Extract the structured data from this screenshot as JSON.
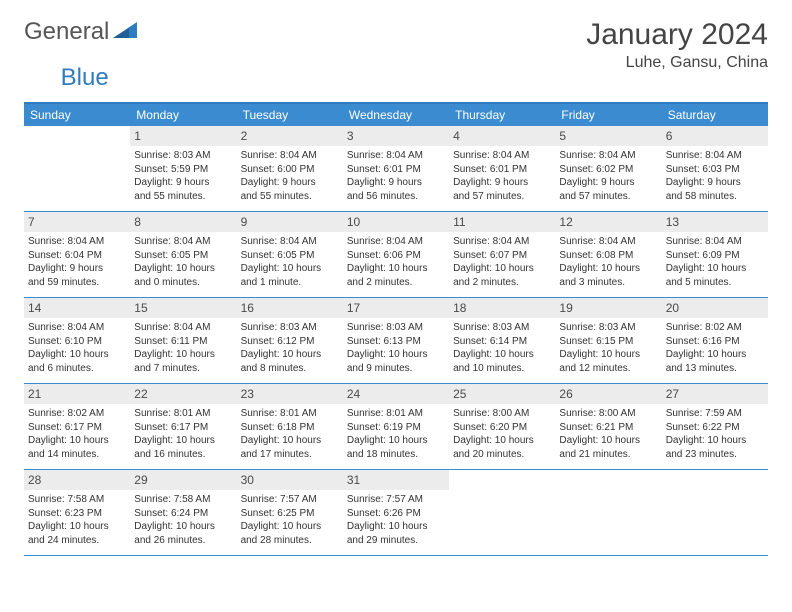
{
  "brand": {
    "part1": "General",
    "part2": "Blue"
  },
  "title": "January 2024",
  "location": "Luhe, Gansu, China",
  "colors": {
    "header_bar": "#3a8bd0",
    "accent_rule": "#2f7bbf",
    "daynum_bg": "#ececec",
    "text": "#333333",
    "logo_gray": "#555555",
    "logo_blue": "#2f7bbf",
    "page_bg": "#ffffff"
  },
  "weekdays": [
    "Sunday",
    "Monday",
    "Tuesday",
    "Wednesday",
    "Thursday",
    "Friday",
    "Saturday"
  ],
  "weeks": [
    [
      {
        "n": "",
        "sunrise": "",
        "sunset": "",
        "day1": "",
        "day2": ""
      },
      {
        "n": "1",
        "sunrise": "Sunrise: 8:03 AM",
        "sunset": "Sunset: 5:59 PM",
        "day1": "Daylight: 9 hours",
        "day2": "and 55 minutes."
      },
      {
        "n": "2",
        "sunrise": "Sunrise: 8:04 AM",
        "sunset": "Sunset: 6:00 PM",
        "day1": "Daylight: 9 hours",
        "day2": "and 55 minutes."
      },
      {
        "n": "3",
        "sunrise": "Sunrise: 8:04 AM",
        "sunset": "Sunset: 6:01 PM",
        "day1": "Daylight: 9 hours",
        "day2": "and 56 minutes."
      },
      {
        "n": "4",
        "sunrise": "Sunrise: 8:04 AM",
        "sunset": "Sunset: 6:01 PM",
        "day1": "Daylight: 9 hours",
        "day2": "and 57 minutes."
      },
      {
        "n": "5",
        "sunrise": "Sunrise: 8:04 AM",
        "sunset": "Sunset: 6:02 PM",
        "day1": "Daylight: 9 hours",
        "day2": "and 57 minutes."
      },
      {
        "n": "6",
        "sunrise": "Sunrise: 8:04 AM",
        "sunset": "Sunset: 6:03 PM",
        "day1": "Daylight: 9 hours",
        "day2": "and 58 minutes."
      }
    ],
    [
      {
        "n": "7",
        "sunrise": "Sunrise: 8:04 AM",
        "sunset": "Sunset: 6:04 PM",
        "day1": "Daylight: 9 hours",
        "day2": "and 59 minutes."
      },
      {
        "n": "8",
        "sunrise": "Sunrise: 8:04 AM",
        "sunset": "Sunset: 6:05 PM",
        "day1": "Daylight: 10 hours",
        "day2": "and 0 minutes."
      },
      {
        "n": "9",
        "sunrise": "Sunrise: 8:04 AM",
        "sunset": "Sunset: 6:05 PM",
        "day1": "Daylight: 10 hours",
        "day2": "and 1 minute."
      },
      {
        "n": "10",
        "sunrise": "Sunrise: 8:04 AM",
        "sunset": "Sunset: 6:06 PM",
        "day1": "Daylight: 10 hours",
        "day2": "and 2 minutes."
      },
      {
        "n": "11",
        "sunrise": "Sunrise: 8:04 AM",
        "sunset": "Sunset: 6:07 PM",
        "day1": "Daylight: 10 hours",
        "day2": "and 2 minutes."
      },
      {
        "n": "12",
        "sunrise": "Sunrise: 8:04 AM",
        "sunset": "Sunset: 6:08 PM",
        "day1": "Daylight: 10 hours",
        "day2": "and 3 minutes."
      },
      {
        "n": "13",
        "sunrise": "Sunrise: 8:04 AM",
        "sunset": "Sunset: 6:09 PM",
        "day1": "Daylight: 10 hours",
        "day2": "and 5 minutes."
      }
    ],
    [
      {
        "n": "14",
        "sunrise": "Sunrise: 8:04 AM",
        "sunset": "Sunset: 6:10 PM",
        "day1": "Daylight: 10 hours",
        "day2": "and 6 minutes."
      },
      {
        "n": "15",
        "sunrise": "Sunrise: 8:04 AM",
        "sunset": "Sunset: 6:11 PM",
        "day1": "Daylight: 10 hours",
        "day2": "and 7 minutes."
      },
      {
        "n": "16",
        "sunrise": "Sunrise: 8:03 AM",
        "sunset": "Sunset: 6:12 PM",
        "day1": "Daylight: 10 hours",
        "day2": "and 8 minutes."
      },
      {
        "n": "17",
        "sunrise": "Sunrise: 8:03 AM",
        "sunset": "Sunset: 6:13 PM",
        "day1": "Daylight: 10 hours",
        "day2": "and 9 minutes."
      },
      {
        "n": "18",
        "sunrise": "Sunrise: 8:03 AM",
        "sunset": "Sunset: 6:14 PM",
        "day1": "Daylight: 10 hours",
        "day2": "and 10 minutes."
      },
      {
        "n": "19",
        "sunrise": "Sunrise: 8:03 AM",
        "sunset": "Sunset: 6:15 PM",
        "day1": "Daylight: 10 hours",
        "day2": "and 12 minutes."
      },
      {
        "n": "20",
        "sunrise": "Sunrise: 8:02 AM",
        "sunset": "Sunset: 6:16 PM",
        "day1": "Daylight: 10 hours",
        "day2": "and 13 minutes."
      }
    ],
    [
      {
        "n": "21",
        "sunrise": "Sunrise: 8:02 AM",
        "sunset": "Sunset: 6:17 PM",
        "day1": "Daylight: 10 hours",
        "day2": "and 14 minutes."
      },
      {
        "n": "22",
        "sunrise": "Sunrise: 8:01 AM",
        "sunset": "Sunset: 6:17 PM",
        "day1": "Daylight: 10 hours",
        "day2": "and 16 minutes."
      },
      {
        "n": "23",
        "sunrise": "Sunrise: 8:01 AM",
        "sunset": "Sunset: 6:18 PM",
        "day1": "Daylight: 10 hours",
        "day2": "and 17 minutes."
      },
      {
        "n": "24",
        "sunrise": "Sunrise: 8:01 AM",
        "sunset": "Sunset: 6:19 PM",
        "day1": "Daylight: 10 hours",
        "day2": "and 18 minutes."
      },
      {
        "n": "25",
        "sunrise": "Sunrise: 8:00 AM",
        "sunset": "Sunset: 6:20 PM",
        "day1": "Daylight: 10 hours",
        "day2": "and 20 minutes."
      },
      {
        "n": "26",
        "sunrise": "Sunrise: 8:00 AM",
        "sunset": "Sunset: 6:21 PM",
        "day1": "Daylight: 10 hours",
        "day2": "and 21 minutes."
      },
      {
        "n": "27",
        "sunrise": "Sunrise: 7:59 AM",
        "sunset": "Sunset: 6:22 PM",
        "day1": "Daylight: 10 hours",
        "day2": "and 23 minutes."
      }
    ],
    [
      {
        "n": "28",
        "sunrise": "Sunrise: 7:58 AM",
        "sunset": "Sunset: 6:23 PM",
        "day1": "Daylight: 10 hours",
        "day2": "and 24 minutes."
      },
      {
        "n": "29",
        "sunrise": "Sunrise: 7:58 AM",
        "sunset": "Sunset: 6:24 PM",
        "day1": "Daylight: 10 hours",
        "day2": "and 26 minutes."
      },
      {
        "n": "30",
        "sunrise": "Sunrise: 7:57 AM",
        "sunset": "Sunset: 6:25 PM",
        "day1": "Daylight: 10 hours",
        "day2": "and 28 minutes."
      },
      {
        "n": "31",
        "sunrise": "Sunrise: 7:57 AM",
        "sunset": "Sunset: 6:26 PM",
        "day1": "Daylight: 10 hours",
        "day2": "and 29 minutes."
      },
      {
        "n": "",
        "sunrise": "",
        "sunset": "",
        "day1": "",
        "day2": ""
      },
      {
        "n": "",
        "sunrise": "",
        "sunset": "",
        "day1": "",
        "day2": ""
      },
      {
        "n": "",
        "sunrise": "",
        "sunset": "",
        "day1": "",
        "day2": ""
      }
    ]
  ]
}
